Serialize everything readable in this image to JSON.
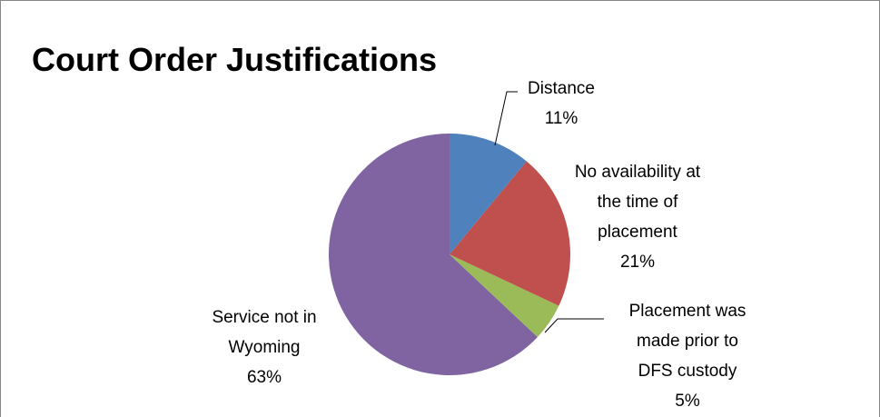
{
  "chart_data": {
    "type": "pie",
    "title": "Court Order Justifications",
    "categories": [
      "Distance",
      "No availability at the time of placement",
      "Placement was made prior to DFS custody",
      "Service not in Wyoming"
    ],
    "values": [
      11,
      21,
      5,
      63
    ],
    "value_labels": [
      "11%",
      "21%",
      "5%",
      "63%"
    ],
    "colors": [
      "#4f81bd",
      "#c0504d",
      "#9bbb59",
      "#8064a2"
    ]
  }
}
